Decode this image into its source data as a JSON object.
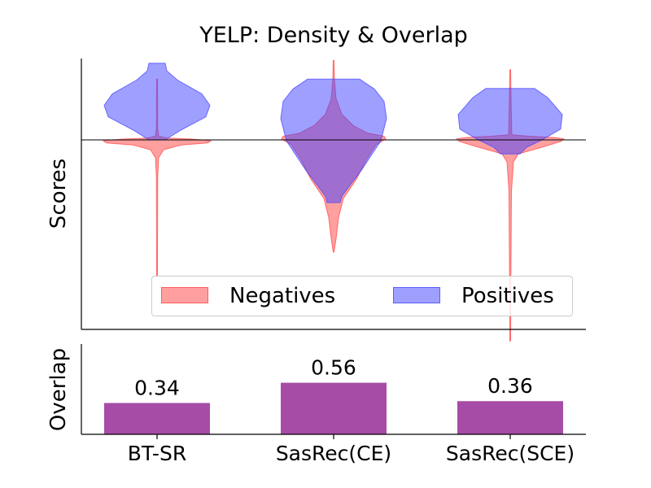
{
  "chart_data": [
    {
      "type": "violin",
      "title": "YELP: Density & Overlap",
      "ylabel": "Scores",
      "xlabel": "",
      "categories": [
        "BT-SR",
        "SasRec(CE)",
        "SasRec(SCE)"
      ],
      "reference_line_y": 0,
      "legend": {
        "placement": "lower-right",
        "entries": [
          "Negatives",
          "Positives"
        ]
      },
      "series": [
        {
          "name": "Negatives",
          "color": "#ff4040",
          "distributions": [
            {
              "category": "BT-SR",
              "min": -1.45,
              "max": 0.65,
              "mode": 0.0
            },
            {
              "category": "SasRec(CE)",
              "min": -1.2,
              "max": 0.85,
              "mode": -0.25
            },
            {
              "category": "SasRec(SCE)",
              "min": -2.15,
              "max": 0.75,
              "mode": 0.0
            }
          ]
        },
        {
          "name": "Positives",
          "color": "#4040ff",
          "distributions": [
            {
              "category": "BT-SR",
              "min": 0.0,
              "max": 0.82,
              "mode": 0.25
            },
            {
              "category": "SasRec(CE)",
              "min": -0.67,
              "max": 0.65,
              "mode": 0.1
            },
            {
              "category": "SasRec(SCE)",
              "min": -0.15,
              "max": 0.55,
              "mode": 0.27
            }
          ]
        }
      ],
      "grid": false
    },
    {
      "type": "bar",
      "ylabel": "Overlap",
      "categories": [
        "BT-SR",
        "SasRec(CE)",
        "SasRec(SCE)"
      ],
      "values": [
        0.34,
        0.56,
        0.36
      ],
      "value_labels": [
        "0.34",
        "0.56",
        "0.36"
      ],
      "color": "#a64ca6",
      "ylim": [
        0,
        0.98
      ]
    }
  ]
}
